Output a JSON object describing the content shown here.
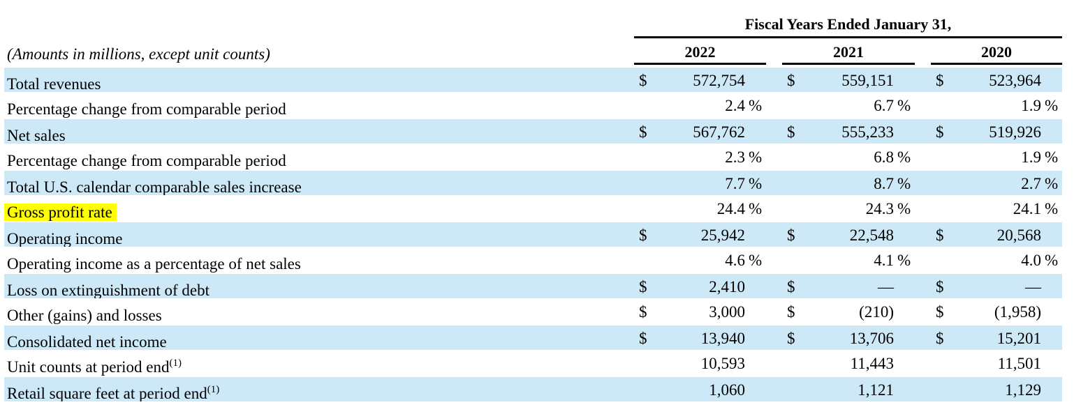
{
  "table": {
    "note": "(Amounts in millions, except unit counts)",
    "header": {
      "title": "Fiscal Years Ended January 31,",
      "years": [
        "2022",
        "2021",
        "2020"
      ]
    },
    "rows": [
      {
        "label": "Total revenues",
        "sup": "",
        "highlight": false,
        "shaded": true,
        "prefix": "$",
        "suffix": "",
        "values": [
          "572,754",
          "559,151",
          "523,964"
        ]
      },
      {
        "label": "Percentage change from comparable period",
        "sup": "",
        "highlight": false,
        "shaded": false,
        "prefix": "",
        "suffix": "%",
        "values": [
          "2.4",
          "6.7",
          "1.9"
        ]
      },
      {
        "label": "Net sales",
        "sup": "",
        "highlight": false,
        "shaded": true,
        "prefix": "$",
        "suffix": "",
        "values": [
          "567,762",
          "555,233",
          "519,926"
        ]
      },
      {
        "label": "Percentage change from comparable period",
        "sup": "",
        "highlight": false,
        "shaded": false,
        "prefix": "",
        "suffix": "%",
        "values": [
          "2.3",
          "6.8",
          "1.9"
        ]
      },
      {
        "label": "Total U.S. calendar comparable sales increase",
        "sup": "",
        "highlight": false,
        "shaded": true,
        "prefix": "",
        "suffix": "%",
        "values": [
          "7.7",
          "8.7",
          "2.7"
        ]
      },
      {
        "label": "Gross profit rate",
        "sup": "",
        "highlight": true,
        "shaded": false,
        "prefix": "",
        "suffix": "%",
        "values": [
          "24.4",
          "24.3",
          "24.1"
        ]
      },
      {
        "label": "Operating income",
        "sup": "",
        "highlight": false,
        "shaded": true,
        "prefix": "$",
        "suffix": "",
        "values": [
          "25,942",
          "22,548",
          "20,568"
        ]
      },
      {
        "label": "Operating income as a percentage of net sales",
        "sup": "",
        "highlight": false,
        "shaded": false,
        "prefix": "",
        "suffix": "%",
        "values": [
          "4.6",
          "4.1",
          "4.0"
        ]
      },
      {
        "label": "Loss on extinguishment of debt",
        "sup": "",
        "highlight": false,
        "shaded": true,
        "prefix": "$",
        "suffix": "",
        "values": [
          "2,410",
          "—",
          "—"
        ]
      },
      {
        "label": "Other (gains) and losses",
        "sup": "",
        "highlight": false,
        "shaded": false,
        "prefix": "$",
        "suffix": "",
        "values": [
          "3,000",
          "(210)",
          "(1,958)"
        ]
      },
      {
        "label": "Consolidated net income",
        "sup": "",
        "highlight": false,
        "shaded": true,
        "prefix": "$",
        "suffix": "",
        "values": [
          "13,940",
          "13,706",
          "15,201"
        ]
      },
      {
        "label": "Unit counts at period end",
        "sup": "(1)",
        "highlight": false,
        "shaded": false,
        "prefix": "",
        "suffix": "",
        "values": [
          "10,593",
          "11,443",
          "11,501"
        ]
      },
      {
        "label": "Retail square feet at period end",
        "sup": "(1)",
        "highlight": false,
        "shaded": true,
        "prefix": "",
        "suffix": "",
        "values": [
          "1,060",
          "1,121",
          "1,129"
        ]
      }
    ]
  },
  "colors": {
    "row_shade": "#cde9f8",
    "highlight": "#ffff00",
    "rule": "#000000"
  }
}
